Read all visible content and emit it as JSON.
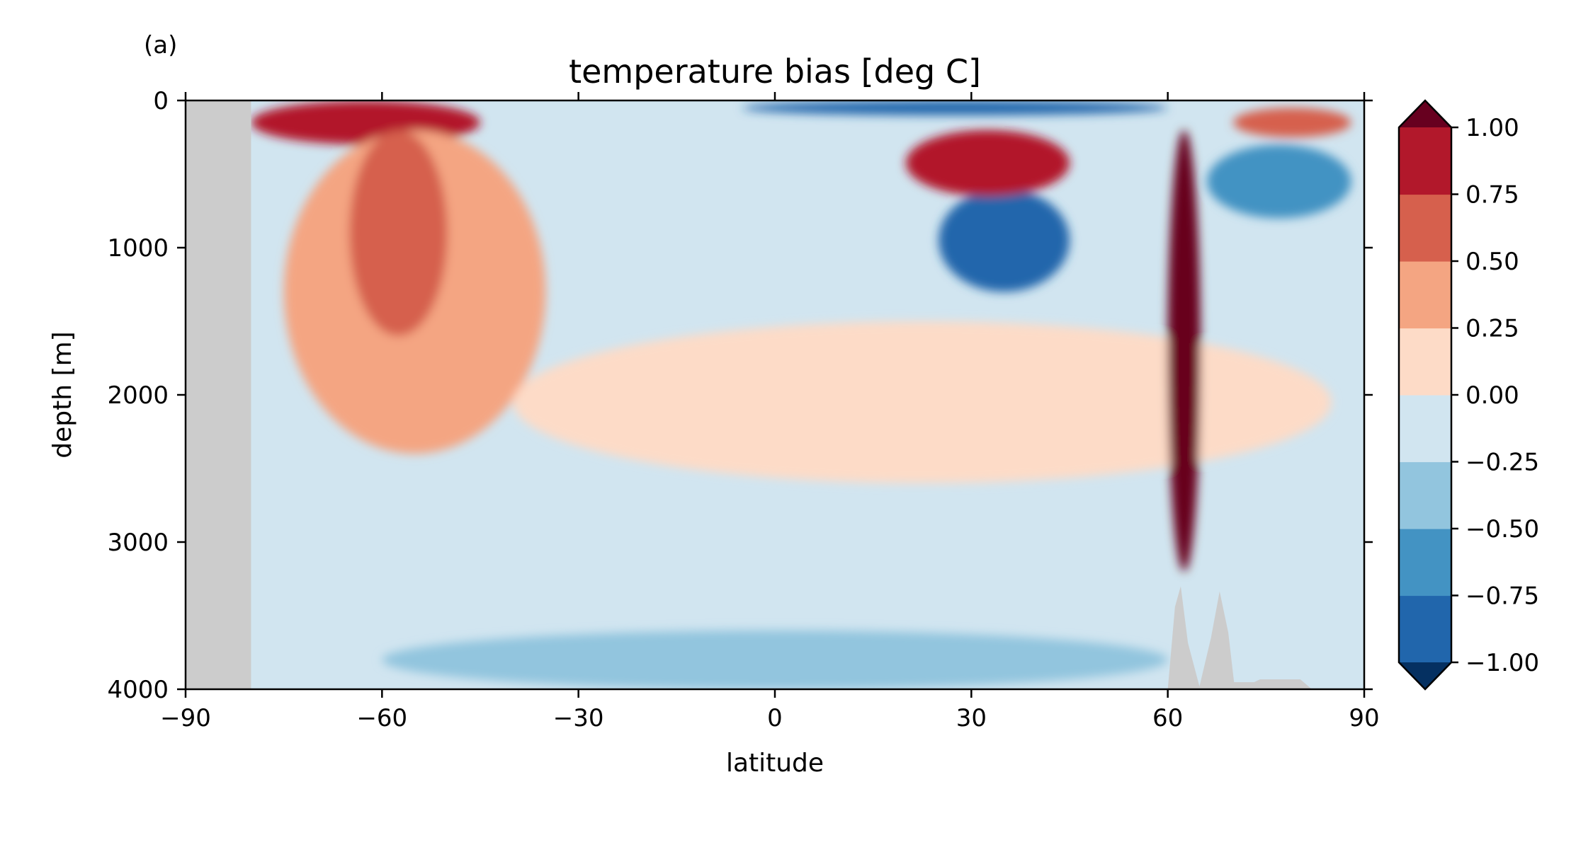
{
  "chart_data": {
    "type": "heatmap",
    "panel_label": "(a)",
    "title": "temperature bias [deg C]",
    "xlabel": "latitude",
    "ylabel": "depth [m]",
    "xlim": [
      -90,
      90
    ],
    "ylim": [
      4000,
      0
    ],
    "y_inverted": true,
    "x_ticks": [
      -90,
      -60,
      -30,
      0,
      30,
      60,
      90
    ],
    "x_tick_labels": [
      "−90",
      "−60",
      "−30",
      "0",
      "30",
      "60",
      "90"
    ],
    "y_ticks": [
      0,
      1000,
      2000,
      3000,
      4000
    ],
    "y_tick_labels": [
      "0",
      "1000",
      "2000",
      "3000",
      "4000"
    ],
    "colorbar": {
      "levels": [
        -1.0,
        -0.75,
        -0.5,
        -0.25,
        0.0,
        0.25,
        0.5,
        0.75,
        1.0
      ],
      "tick_labels": [
        "−1.00",
        "−0.75",
        "−0.50",
        "−0.25",
        "0.00",
        "0.25",
        "0.50",
        "0.75",
        "1.00"
      ],
      "colors": [
        "#053061",
        "#2166ac",
        "#4393c3",
        "#92c5de",
        "#d1e5f0",
        "#fddbc7",
        "#f4a582",
        "#d6604d",
        "#b2182b",
        "#67001f"
      ],
      "extend": "both",
      "placement": "right"
    },
    "land_color": "#cccccc",
    "background_level": -0.1,
    "features": [
      {
        "name": "antarctic-land",
        "type": "land",
        "x": [
          -90,
          -80
        ],
        "depth": [
          0,
          4000
        ]
      },
      {
        "name": "surface-warm-southern-ocean",
        "value": 0.9,
        "x": [
          -80,
          -45
        ],
        "depth": [
          0,
          300
        ]
      },
      {
        "name": "southern-warm-tongue",
        "value": 0.35,
        "x": [
          -75,
          -35
        ],
        "depth": [
          200,
          2400
        ]
      },
      {
        "name": "subantarctic-warm-core",
        "value": 0.6,
        "x": [
          -65,
          -50
        ],
        "depth": [
          200,
          1600
        ]
      },
      {
        "name": "tropical-surface-cold",
        "value": -1.0,
        "x": [
          -5,
          60
        ],
        "depth": [
          0,
          100
        ]
      },
      {
        "name": "northern-subtropical-cold-core",
        "value": -1.0,
        "x": [
          25,
          45
        ],
        "depth": [
          600,
          1300
        ]
      },
      {
        "name": "northern-subtropical-warm-lens",
        "value": 0.85,
        "x": [
          20,
          45
        ],
        "depth": [
          200,
          650
        ]
      },
      {
        "name": "mid-depth-warm-layer",
        "value": 0.1,
        "x": [
          -40,
          85
        ],
        "depth": [
          1500,
          2600
        ]
      },
      {
        "name": "deep-cold-layer",
        "value": -0.35,
        "x": [
          -60,
          60
        ],
        "depth": [
          3600,
          4000
        ]
      },
      {
        "name": "nordic-warm-plume",
        "value": 1.0,
        "x": [
          60,
          65
        ],
        "depth": [
          200,
          3200
        ]
      },
      {
        "name": "arctic-subsurface-cold",
        "value": -0.75,
        "x": [
          66,
          88
        ],
        "depth": [
          300,
          800
        ]
      },
      {
        "name": "arctic-surface-warm",
        "value": 0.6,
        "x": [
          70,
          88
        ],
        "depth": [
          50,
          250
        ]
      },
      {
        "name": "nordic-ridge-topography",
        "type": "land",
        "x": [
          60,
          82
        ],
        "depth": [
          3300,
          4000
        ]
      }
    ]
  }
}
